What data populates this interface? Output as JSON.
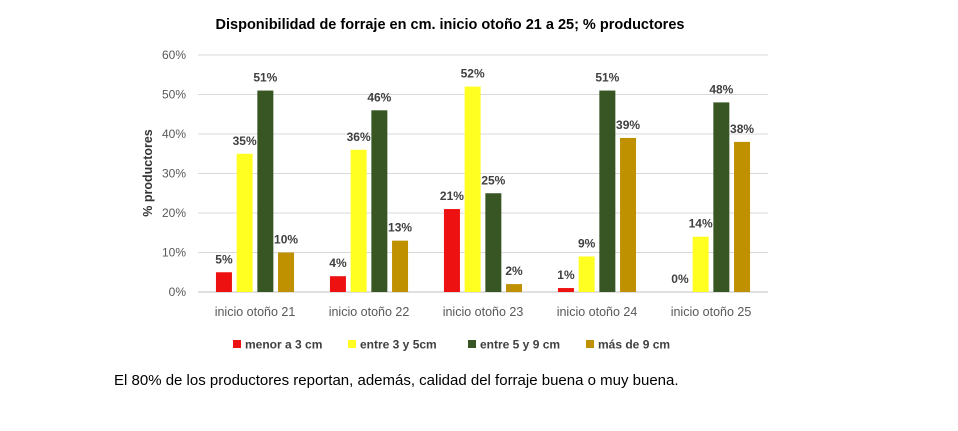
{
  "chart_data": {
    "type": "bar",
    "title": "Disponibilidad de forraje en cm. inicio otoño 21 a 25; % productores",
    "xlabel": "",
    "ylabel": "% productores",
    "ylim": [
      0,
      60
    ],
    "yticks": [
      0,
      10,
      20,
      30,
      40,
      50,
      60
    ],
    "ytick_labels": [
      "0%",
      "10%",
      "20%",
      "30%",
      "40%",
      "50%",
      "60%"
    ],
    "grid": true,
    "legend_position": "bottom",
    "categories": [
      "inicio otoño 21",
      "inicio otoño 22",
      "inicio otoño 23",
      "inicio otoño 24",
      "inicio otoño 25"
    ],
    "series": [
      {
        "name": "menor a 3 cm",
        "color": "#ee1111",
        "values": [
          5,
          4,
          21,
          1,
          0
        ],
        "labels": [
          "5%",
          "4%",
          "21%",
          "1%",
          "0%"
        ]
      },
      {
        "name": "entre 3 y 5cm",
        "color": "#ffff22",
        "values": [
          35,
          36,
          52,
          9,
          14
        ],
        "labels": [
          "35%",
          "36%",
          "52%",
          "9%",
          "14%"
        ]
      },
      {
        "name": "entre 5 y 9 cm",
        "color": "#375623",
        "values": [
          51,
          46,
          25,
          51,
          48
        ],
        "labels": [
          "51%",
          "46%",
          "25%",
          "51%",
          "48%"
        ]
      },
      {
        "name": "más de 9 cm",
        "color": "#bf9000",
        "values": [
          10,
          13,
          2,
          39,
          38
        ],
        "labels": [
          "10%",
          "13%",
          "2%",
          "39%",
          "38%"
        ]
      }
    ]
  },
  "footer": {
    "text": "El 80% de los productores reportan, además, calidad del forraje buena o muy buena."
  }
}
